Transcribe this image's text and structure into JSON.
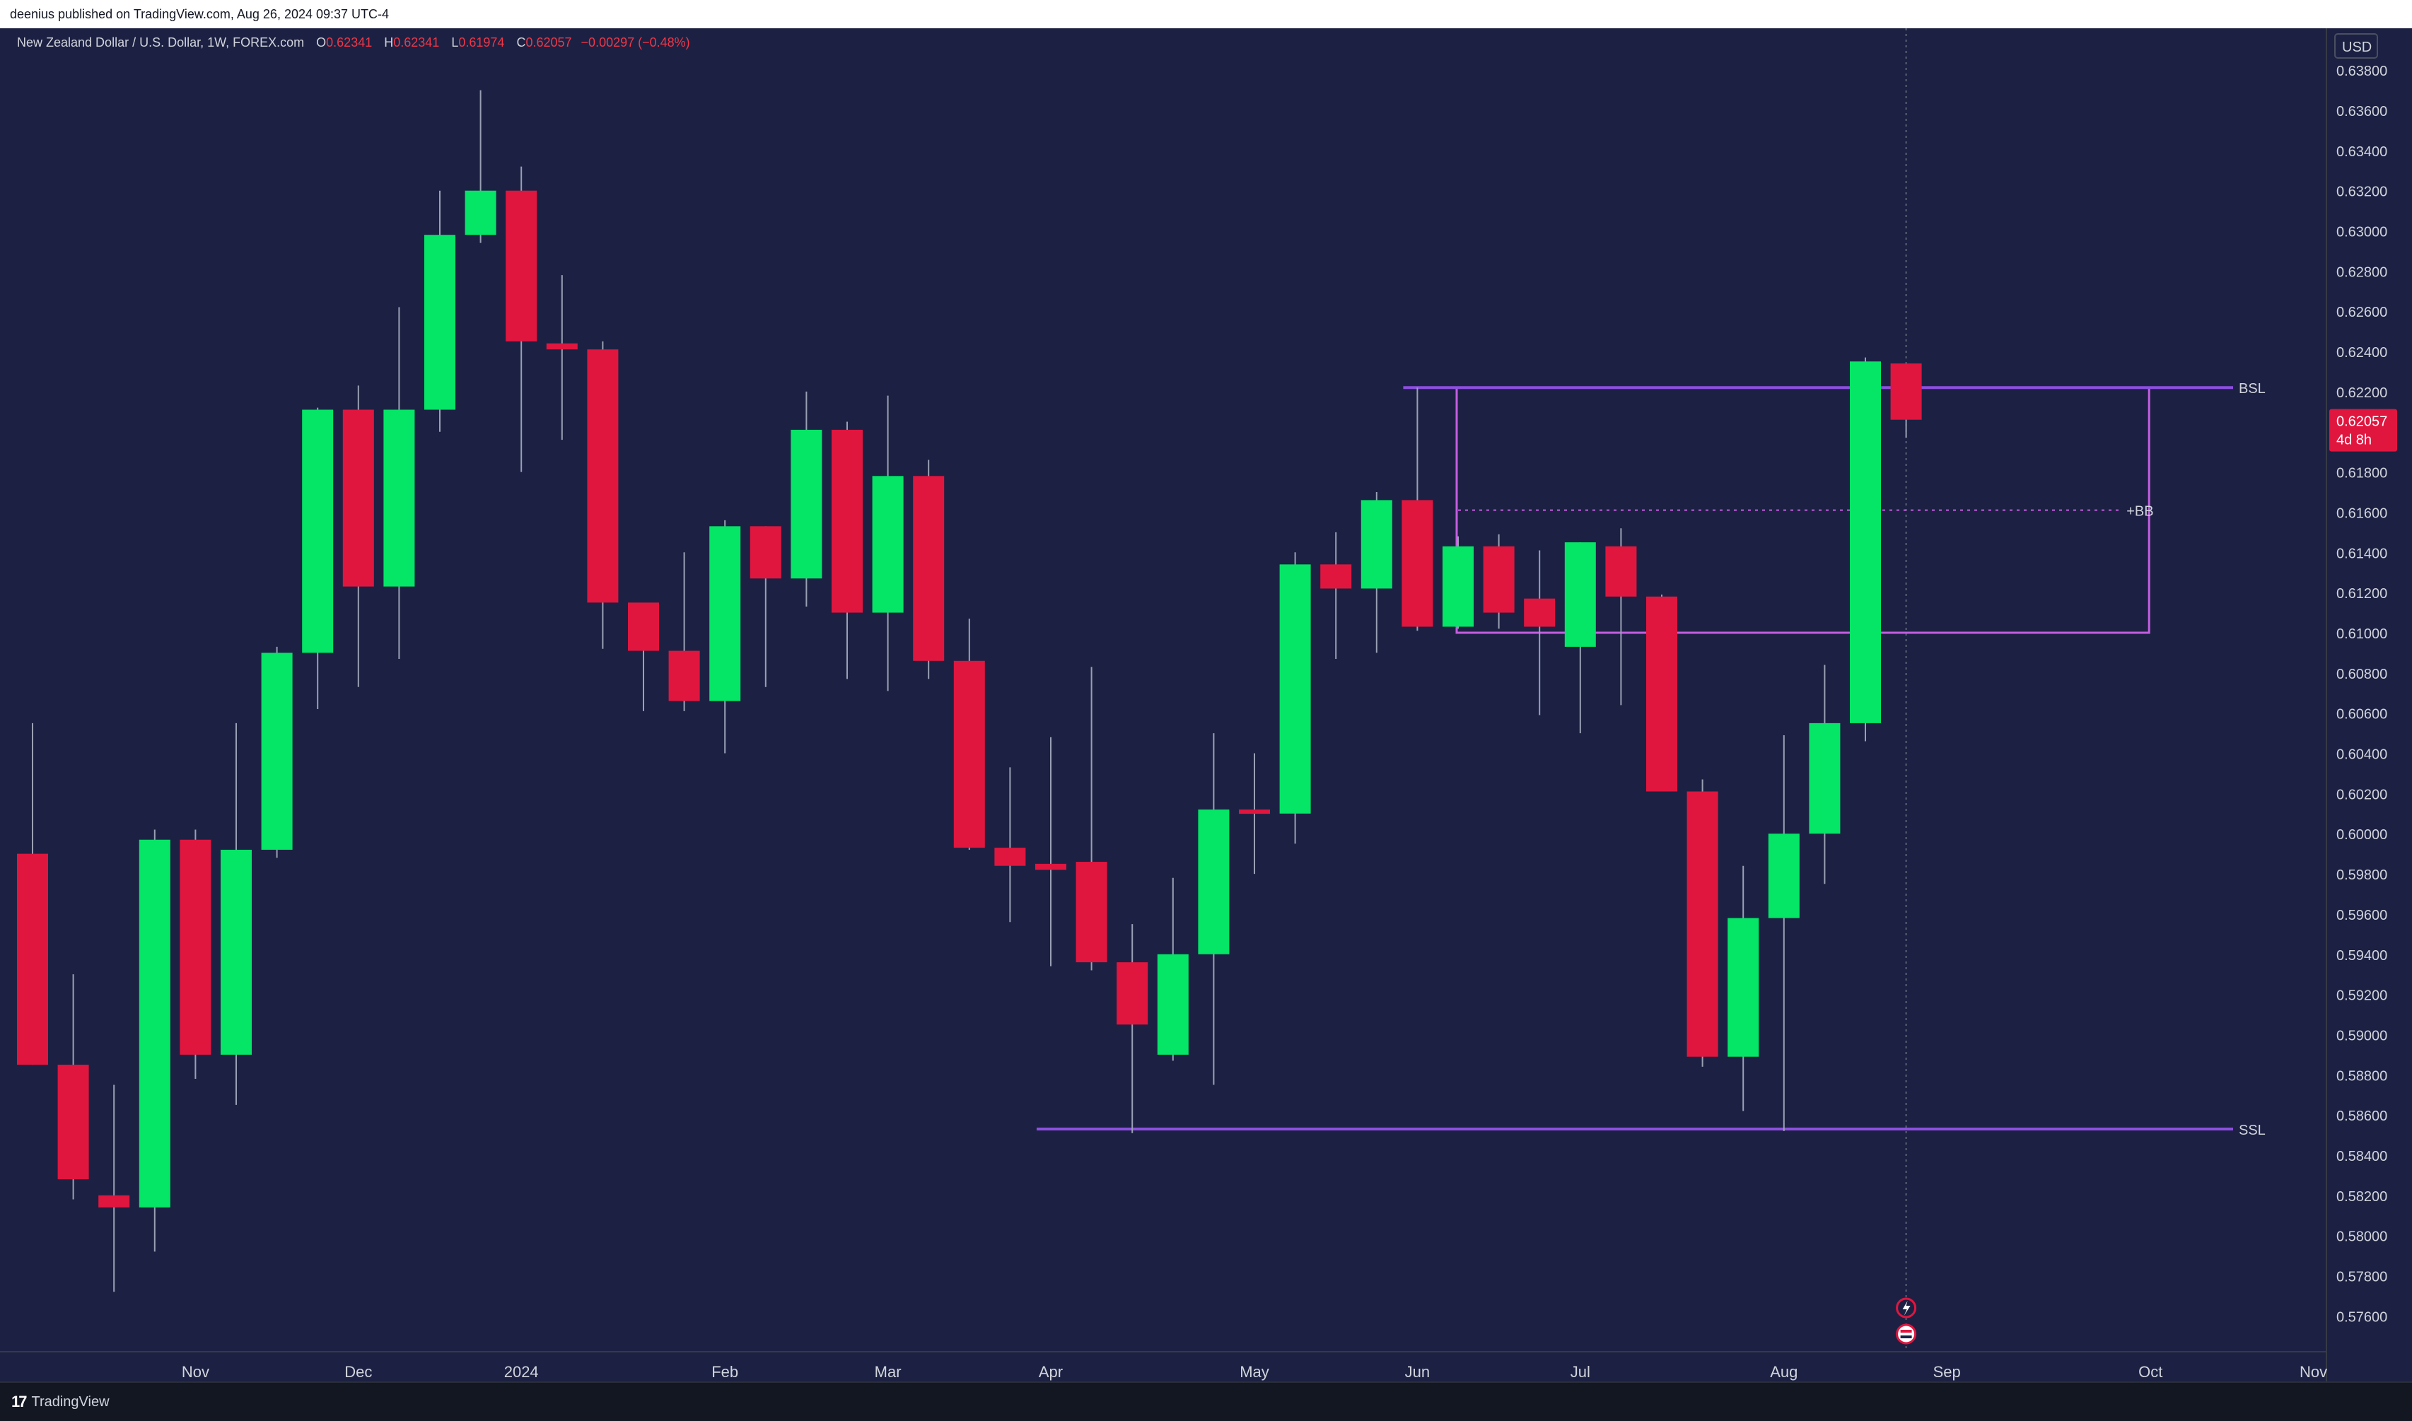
{
  "header": {
    "published_text": "deenius published on TradingView.com, Aug 26, 2024 09:37 UTC-4"
  },
  "legend": {
    "symbol": "New Zealand Dollar / U.S. Dollar, 1W, FOREX.com",
    "o_label": "O",
    "o_value": "0.62341",
    "h_label": "H",
    "h_value": "0.62341",
    "l_label": "L",
    "l_value": "0.61974",
    "c_label": "C",
    "c_value": "0.62057",
    "change": "−0.00297 (−0.48%)"
  },
  "footer": {
    "brand": "TradingView",
    "logo_text": "17"
  },
  "colors": {
    "background": "#1c2143",
    "up": "#05e566",
    "down": "#e0163f",
    "wick": "#9aa0b4",
    "level_line": "#8d4fe0",
    "box": "#c45ee0",
    "axis_text": "#d1d4dc",
    "price_label": "#e0163f"
  },
  "chart_data": {
    "type": "candlestick",
    "symbol": "NZDUSD",
    "timeframe": "1W",
    "currency_label": "USD",
    "ylim": [
      0.5745,
      0.6398
    ],
    "y_ticks": [
      "0.63800",
      "0.63600",
      "0.63400",
      "0.63200",
      "0.63000",
      "0.62800",
      "0.62600",
      "0.62400",
      "0.62200",
      "0.62000",
      "0.61800",
      "0.61600",
      "0.61400",
      "0.61200",
      "0.61000",
      "0.60800",
      "0.60600",
      "0.60400",
      "0.60200",
      "0.60000",
      "0.59800",
      "0.59600",
      "0.59400",
      "0.59200",
      "0.59000",
      "0.58800",
      "0.58600",
      "0.58400",
      "0.58200",
      "0.58000",
      "0.57800",
      "0.57600"
    ],
    "x_labels": [
      {
        "label": "Nov",
        "index": 4
      },
      {
        "label": "Dec",
        "index": 8
      },
      {
        "label": "2024",
        "index": 12
      },
      {
        "label": "Feb",
        "index": 17
      },
      {
        "label": "Mar",
        "index": 21
      },
      {
        "label": "Apr",
        "index": 25
      },
      {
        "label": "May",
        "index": 30
      },
      {
        "label": "Jun",
        "index": 34
      },
      {
        "label": "Jul",
        "index": 38
      },
      {
        "label": "Aug",
        "index": 43
      },
      {
        "label": "Sep",
        "index": 47
      },
      {
        "label": "Oct",
        "index": 52
      },
      {
        "label": "Nov",
        "index": 56
      }
    ],
    "candles": [
      {
        "o": 0.599,
        "h": 0.6055,
        "l": 0.5885,
        "c": 0.5885
      },
      {
        "o": 0.5885,
        "h": 0.593,
        "l": 0.5818,
        "c": 0.5828
      },
      {
        "o": 0.582,
        "h": 0.5875,
        "l": 0.5772,
        "c": 0.5814
      },
      {
        "o": 0.5814,
        "h": 0.6002,
        "l": 0.5792,
        "c": 0.5997
      },
      {
        "o": 0.5997,
        "h": 0.6002,
        "l": 0.5878,
        "c": 0.589
      },
      {
        "o": 0.589,
        "h": 0.6055,
        "l": 0.5865,
        "c": 0.5992
      },
      {
        "o": 0.5992,
        "h": 0.6093,
        "l": 0.5988,
        "c": 0.609
      },
      {
        "o": 0.609,
        "h": 0.6212,
        "l": 0.6062,
        "c": 0.6211
      },
      {
        "o": 0.6211,
        "h": 0.6223,
        "l": 0.6073,
        "c": 0.6123
      },
      {
        "o": 0.6123,
        "h": 0.6262,
        "l": 0.6087,
        "c": 0.6211
      },
      {
        "o": 0.6211,
        "h": 0.632,
        "l": 0.62,
        "c": 0.6298
      },
      {
        "o": 0.6298,
        "h": 0.637,
        "l": 0.6294,
        "c": 0.632
      },
      {
        "o": 0.632,
        "h": 0.6332,
        "l": 0.618,
        "c": 0.6245
      },
      {
        "o": 0.6244,
        "h": 0.6278,
        "l": 0.6196,
        "c": 0.6241
      },
      {
        "o": 0.6241,
        "h": 0.6245,
        "l": 0.6092,
        "c": 0.6115
      },
      {
        "o": 0.6115,
        "h": 0.6113,
        "l": 0.6061,
        "c": 0.6091
      },
      {
        "o": 0.6091,
        "h": 0.614,
        "l": 0.6061,
        "c": 0.6066
      },
      {
        "o": 0.6066,
        "h": 0.6156,
        "l": 0.604,
        "c": 0.6153
      },
      {
        "o": 0.6153,
        "h": 0.6153,
        "l": 0.6073,
        "c": 0.6127
      },
      {
        "o": 0.6127,
        "h": 0.622,
        "l": 0.6113,
        "c": 0.6201
      },
      {
        "o": 0.6201,
        "h": 0.6205,
        "l": 0.6077,
        "c": 0.611
      },
      {
        "o": 0.611,
        "h": 0.6218,
        "l": 0.6071,
        "c": 0.6178
      },
      {
        "o": 0.6178,
        "h": 0.6186,
        "l": 0.6077,
        "c": 0.6086
      },
      {
        "o": 0.6086,
        "h": 0.6107,
        "l": 0.5992,
        "c": 0.5993
      },
      {
        "o": 0.5993,
        "h": 0.6033,
        "l": 0.5956,
        "c": 0.5984
      },
      {
        "o": 0.5985,
        "h": 0.6048,
        "l": 0.5934,
        "c": 0.5982
      },
      {
        "o": 0.5986,
        "h": 0.6083,
        "l": 0.5932,
        "c": 0.5936
      },
      {
        "o": 0.5936,
        "h": 0.5955,
        "l": 0.5851,
        "c": 0.5905
      },
      {
        "o": 0.589,
        "h": 0.5978,
        "l": 0.5887,
        "c": 0.594
      },
      {
        "o": 0.594,
        "h": 0.605,
        "l": 0.5875,
        "c": 0.6012
      },
      {
        "o": 0.6012,
        "h": 0.604,
        "l": 0.598,
        "c": 0.601
      },
      {
        "o": 0.601,
        "h": 0.614,
        "l": 0.5995,
        "c": 0.6134
      },
      {
        "o": 0.6134,
        "h": 0.615,
        "l": 0.6087,
        "c": 0.6122
      },
      {
        "o": 0.6122,
        "h": 0.617,
        "l": 0.609,
        "c": 0.6166
      },
      {
        "o": 0.6166,
        "h": 0.6222,
        "l": 0.6101,
        "c": 0.6103
      },
      {
        "o": 0.6103,
        "h": 0.6148,
        "l": 0.6102,
        "c": 0.6143
      },
      {
        "o": 0.6143,
        "h": 0.6149,
        "l": 0.6102,
        "c": 0.611
      },
      {
        "o": 0.6117,
        "h": 0.6141,
        "l": 0.6059,
        "c": 0.6103
      },
      {
        "o": 0.6093,
        "h": 0.6145,
        "l": 0.605,
        "c": 0.6145
      },
      {
        "o": 0.6143,
        "h": 0.6152,
        "l": 0.6064,
        "c": 0.6118
      },
      {
        "o": 0.6118,
        "h": 0.6119,
        "l": 0.6021,
        "c": 0.6021
      },
      {
        "o": 0.6021,
        "h": 0.6027,
        "l": 0.5884,
        "c": 0.5889
      },
      {
        "o": 0.5889,
        "h": 0.5984,
        "l": 0.5862,
        "c": 0.5958
      },
      {
        "o": 0.5958,
        "h": 0.6049,
        "l": 0.5852,
        "c": 0.6
      },
      {
        "o": 0.6,
        "h": 0.6084,
        "l": 0.5975,
        "c": 0.6055
      },
      {
        "o": 0.6055,
        "h": 0.6237,
        "l": 0.6046,
        "c": 0.6235
      },
      {
        "o": 0.6234,
        "h": 0.6234,
        "l": 0.6197,
        "c": 0.6206
      }
    ],
    "levels": [
      {
        "name": "BSL",
        "price": 0.6222,
        "from_index": 34
      },
      {
        "name": "SSL",
        "price": 0.5853,
        "from_index": 25
      }
    ],
    "box": {
      "top": 0.6222,
      "bottom": 0.61,
      "from_index": 35,
      "to_index": 52,
      "label": "+BB",
      "mid": 0.6161
    },
    "current_price": {
      "value": "0.62057",
      "countdown": "4d 8h",
      "price": 0.62057
    },
    "marker_index": 46
  }
}
